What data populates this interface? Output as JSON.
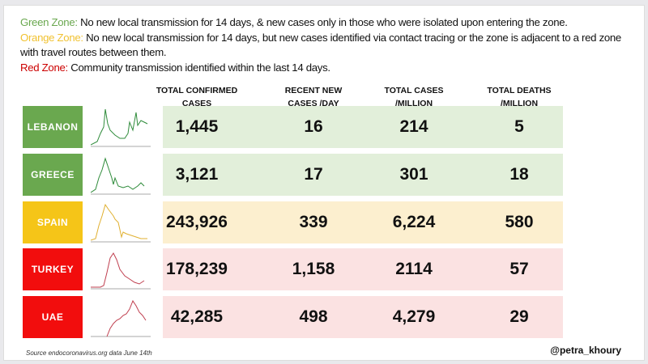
{
  "legend": [
    {
      "zone": "Green Zone:",
      "text": " No new local transmission for 14 days, & new cases only in those who were isolated upon entering the zone.",
      "color": "#6aa84f"
    },
    {
      "zone": "Orange Zone:",
      "text": " No new local transmission for 14 days, but new cases identified via contact tracing or the zone is adjacent to a red zone with travel routes between them.",
      "color": "#f1c232"
    },
    {
      "zone": "Red Zone:",
      "text": " Community transmission identified within the last 14 days.",
      "color": "#cc0000"
    }
  ],
  "colors": {
    "green": "#6aa84f",
    "orange": "#f5c518",
    "red": "#f20d0d",
    "green_bg": "#e2efda",
    "orange_bg": "#fcefcf",
    "red_bg": "#fbe2e2"
  },
  "chart_data": {
    "type": "table",
    "columns": [
      "TOTAL CONFIRMED CASES",
      "RECENT NEW CASES /DAY",
      "TOTAL CASES /MILLION",
      "TOTAL DEATHS /MILLION"
    ],
    "rows": [
      {
        "country": "LEBANON",
        "zone": "green",
        "values": [
          "1,445",
          "16",
          "214",
          "5"
        ]
      },
      {
        "country": "GREECE",
        "zone": "green",
        "values": [
          "3,121",
          "17",
          "301",
          "18"
        ]
      },
      {
        "country": "SPAIN",
        "zone": "orange",
        "values": [
          "243,926",
          "339",
          "6,224",
          "580"
        ]
      },
      {
        "country": "TURKEY",
        "zone": "red",
        "values": [
          "178,239",
          "1,158",
          "2114",
          "57"
        ]
      },
      {
        "country": "UAE",
        "zone": "red",
        "values": [
          "42,285",
          "498",
          "4,279",
          "29"
        ]
      }
    ]
  },
  "source": "Source endocoronavirus.org data June 14th",
  "handle": "@petra_khoury"
}
